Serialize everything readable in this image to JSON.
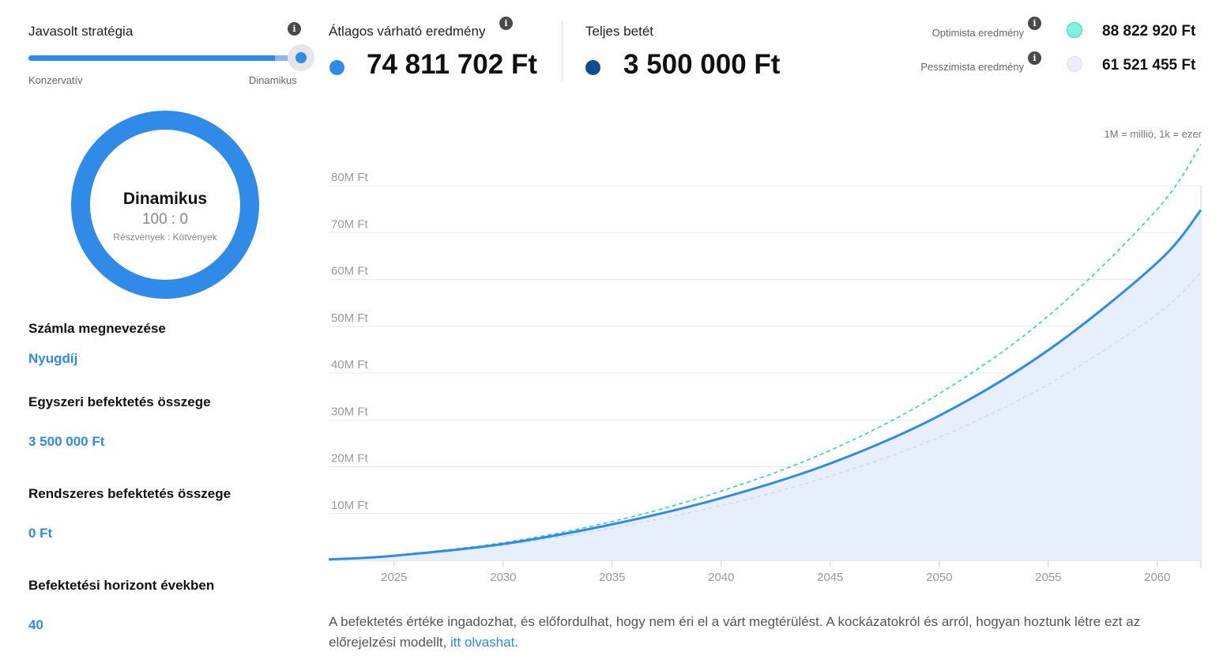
{
  "strategy": {
    "label": "Javasolt stratégia",
    "info_icon": "info-icon",
    "slider": {
      "min_label": "Konzervatív",
      "max_label": "Dinamikus",
      "value_fraction": 1.0
    }
  },
  "donut": {
    "title": "Dinamikus",
    "ratio": "100 : 0",
    "subtitle": "Részvények : Kötvények",
    "stock_share": 100,
    "bond_share": 0,
    "color": "#2f8ae8"
  },
  "form": {
    "account_name_label": "Számla megnevezése",
    "account_name_value": "Nyugdíj",
    "one_time_label": "Egyszeri befektetés összege",
    "one_time_value": "3 500 000  Ft",
    "regular_label": "Rendszeres befektetés összege",
    "regular_value": "0  Ft",
    "horizon_label": "Befektetési horizont években",
    "horizon_value": "40"
  },
  "stats": {
    "average": {
      "label": "Átlagos várható eredmény",
      "value": "74 811 702 Ft",
      "color": "#2f8ae8"
    },
    "deposit": {
      "label": "Teljes betét",
      "value": "3 500 000 Ft",
      "color": "#0d4f8c"
    },
    "optimistic": {
      "label": "Optimista eredmény",
      "value": "88 822 920 Ft",
      "color": "#7ff0e0"
    },
    "pessimistic": {
      "label": "Pesszimista eredmény",
      "value": "61 521 455 Ft",
      "color": "#eceff5"
    }
  },
  "chart_note": "1M = millió, 1k = ezer",
  "chart_data": {
    "type": "line",
    "x_range": [
      2022,
      2062
    ],
    "ylim": [
      0,
      90
    ],
    "y_ticks": [
      10,
      20,
      30,
      40,
      50,
      60,
      70,
      80
    ],
    "y_tick_labels": [
      "10M Ft",
      "20M Ft",
      "30M Ft",
      "40M Ft",
      "50M Ft",
      "60M Ft",
      "70M Ft",
      "80M Ft"
    ],
    "x_ticks": [
      2025,
      2030,
      2035,
      2040,
      2045,
      2050,
      2055,
      2060
    ],
    "x_tick_labels": [
      "2025",
      "2030",
      "2035",
      "2040",
      "2045",
      "2050",
      "2055",
      "2060"
    ],
    "series": [
      {
        "key": "average",
        "color": "#2f8ae8",
        "style": "solid",
        "fill": "#e6effb",
        "x": [
          2022,
          2025,
          2030,
          2035,
          2040,
          2045,
          2050,
          2055,
          2060,
          2062
        ],
        "y": [
          0.2,
          1.0,
          3.5,
          7.7,
          13.3,
          20.7,
          30.9,
          44.9,
          63.6,
          74.8
        ]
      },
      {
        "key": "optimistic",
        "color": "#2fd4b4",
        "style": "dashed",
        "x": [
          2022,
          2025,
          2030,
          2035,
          2040,
          2045,
          2050,
          2055,
          2060,
          2062
        ],
        "y": [
          0.2,
          1.1,
          3.8,
          8.3,
          14.8,
          23.5,
          35.6,
          52.2,
          75.0,
          88.8
        ]
      },
      {
        "key": "pessimistic",
        "color": "#d6dbe4",
        "style": "dashed",
        "x": [
          2022,
          2025,
          2030,
          2035,
          2040,
          2045,
          2050,
          2055,
          2060,
          2062
        ],
        "y": [
          0.2,
          0.9,
          3.2,
          6.9,
          11.7,
          18.0,
          26.3,
          37.6,
          52.6,
          61.5
        ]
      }
    ],
    "grid": true
  },
  "disclaimer": {
    "text": "A befektetés értéke ingadozhat, és előfordulhat, hogy nem éri el a várt megtérülést. A kockázatokról és arról, hogyan hoztunk létre ezt az előrejelzési modellt,",
    "link_text": "itt olvashat",
    "suffix": "."
  }
}
